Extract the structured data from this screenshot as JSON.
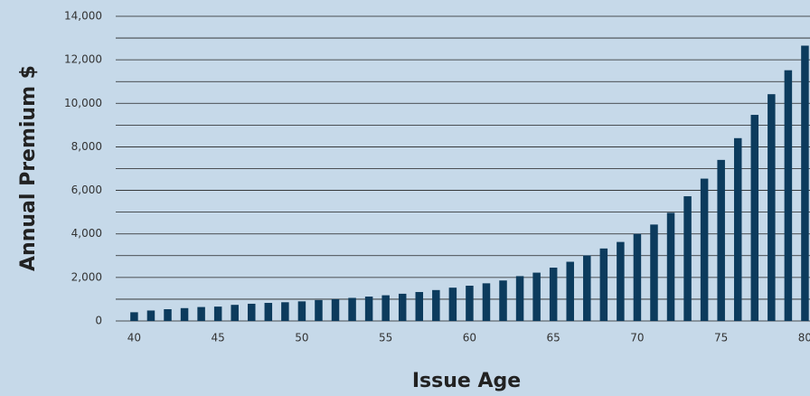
{
  "chart_data": {
    "type": "bar",
    "x_label": "Issue Age",
    "y_label": "Annual Premium $",
    "x": [
      40,
      41,
      42,
      43,
      44,
      45,
      46,
      47,
      48,
      49,
      50,
      51,
      52,
      53,
      54,
      55,
      56,
      57,
      58,
      59,
      60,
      61,
      62,
      63,
      64,
      65,
      66,
      67,
      68,
      69,
      70,
      71,
      72,
      73,
      74,
      75,
      76,
      77,
      78,
      79,
      80
    ],
    "values": [
      400,
      480,
      540,
      590,
      640,
      660,
      740,
      790,
      830,
      860,
      900,
      960,
      1000,
      1060,
      1120,
      1180,
      1250,
      1330,
      1420,
      1530,
      1620,
      1730,
      1860,
      2060,
      2220,
      2450,
      2720,
      3010,
      3330,
      3630,
      4000,
      4430,
      4970,
      5730,
      6540,
      7400,
      8400,
      9470,
      10420,
      11520,
      12650
    ],
    "color": "#0c3b5d",
    "xlim": [
      38.9,
      80.3
    ],
    "xticks": [
      40,
      45,
      50,
      55,
      60,
      65,
      70,
      75,
      80
    ],
    "ylim": [
      0,
      14000
    ],
    "yticks": [
      0,
      {
        "value": 2000,
        "label": "2,000"
      },
      {
        "value": 4000,
        "label": "4,000"
      },
      {
        "value": 6000,
        "label": "6,000"
      },
      {
        "value": 8000,
        "label": "8,000"
      },
      {
        "value": 10000,
        "label": "10,000"
      },
      {
        "value": 12000,
        "label": "12,000"
      },
      {
        "value": 14000,
        "label": "14,000"
      }
    ],
    "minor_yticks": [
      1000,
      3000,
      5000,
      7000,
      9000,
      11000,
      13000
    ],
    "grid": true
  }
}
